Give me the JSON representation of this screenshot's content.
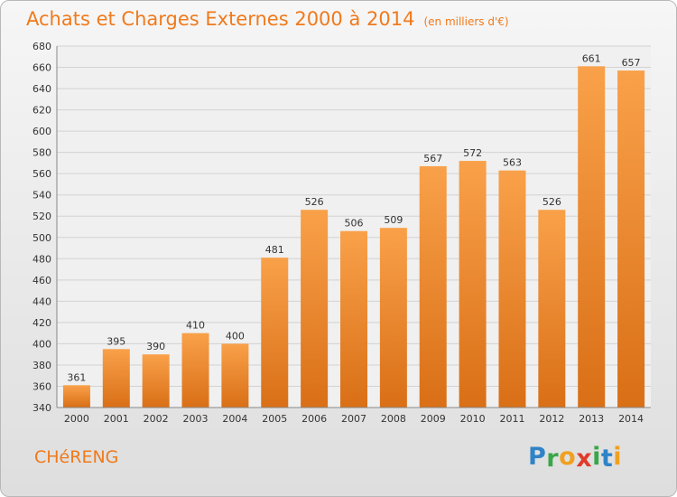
{
  "chart_data": {
    "type": "bar",
    "title": "Achats et Charges Externes 2000 à 2014",
    "subtitle": "(en milliers d'€)",
    "categories": [
      "2000",
      "2001",
      "2002",
      "2003",
      "2004",
      "2005",
      "2006",
      "2007",
      "2008",
      "2009",
      "2010",
      "2011",
      "2012",
      "2013",
      "2014"
    ],
    "values": [
      361,
      395,
      390,
      410,
      400,
      481,
      526,
      506,
      509,
      567,
      572,
      563,
      526,
      661,
      657
    ],
    "ylim": [
      340,
      680
    ],
    "yticks": [
      340,
      360,
      380,
      400,
      420,
      440,
      460,
      480,
      500,
      520,
      540,
      560,
      580,
      600,
      620,
      640,
      660,
      680
    ],
    "grid": true,
    "colors": {
      "bar_light": "#f9a14a",
      "bar_dark": "#d96f16",
      "title": "#f07a1c"
    }
  },
  "footer": {
    "city": "CHéRENG",
    "logo_letters": [
      {
        "ch": "P",
        "color": "#2f83c8"
      },
      {
        "ch": "r",
        "color": "#3aa64a"
      },
      {
        "ch": "o",
        "color": "#f0a020"
      },
      {
        "ch": "x",
        "color": "#e23a2a"
      },
      {
        "ch": "i",
        "color": "#3aa64a"
      },
      {
        "ch": "t",
        "color": "#2f83c8"
      },
      {
        "ch": "i",
        "color": "#f0a020"
      }
    ]
  }
}
